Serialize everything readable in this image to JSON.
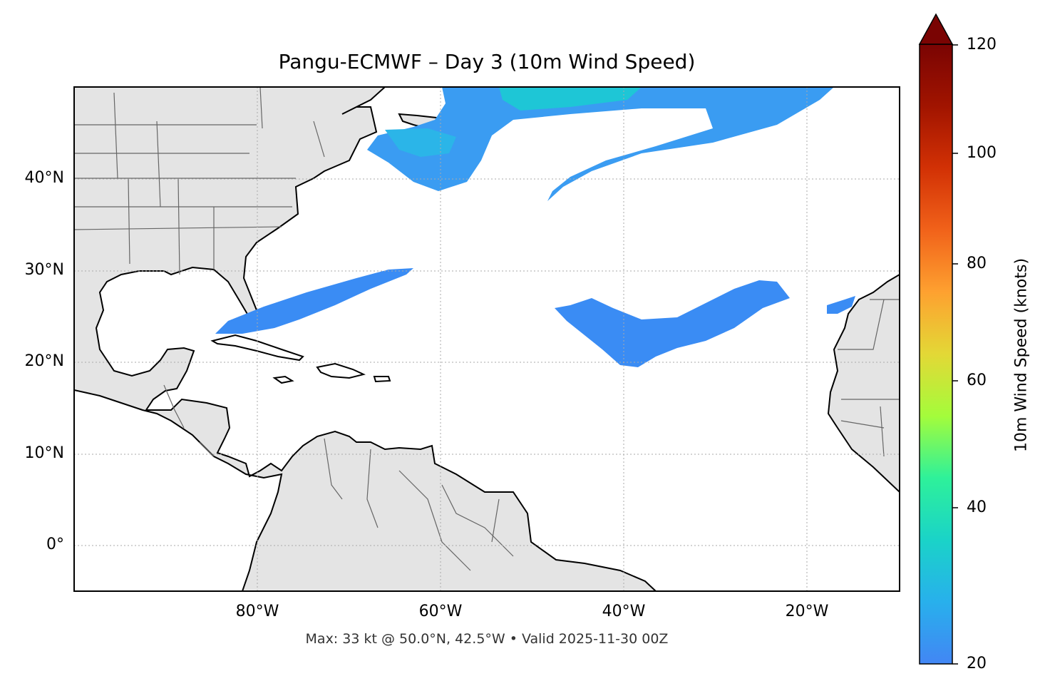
{
  "title": "Pangu-ECMWF – Day 3 (10m Wind Speed)",
  "footer": "Max: 33 kt @ 50.0°N, 42.5°W • Valid 2025-11-30 00Z",
  "map": {
    "lat_ticks": [
      "40°N",
      "30°N",
      "20°N",
      "10°N",
      "0°"
    ],
    "lon_ticks": [
      "80°W",
      "60°W",
      "40°W",
      "20°W"
    ],
    "land_color": "#e4e4e4",
    "coast_color": "#000000",
    "border_color": "#666666",
    "grid": "dotted"
  },
  "colorbar": {
    "label": "10m Wind Speed (knots)",
    "ticks": [
      "120",
      "100",
      "80",
      "60",
      "40",
      "20"
    ],
    "min": 20,
    "max": 120,
    "extend": "max",
    "colormap": [
      "#4286f4",
      "#1ac7d4",
      "#2ef19a",
      "#a4fc3b",
      "#e3d836",
      "#fea130",
      "#f1621a",
      "#c82803",
      "#900c00",
      "#7a0403"
    ]
  },
  "wind_swaths": [
    "northeast-atlantic-jet",
    "newfoundland-band",
    "mid-atlantic-streak",
    "bahamas-band",
    "subtropical-band"
  ]
}
